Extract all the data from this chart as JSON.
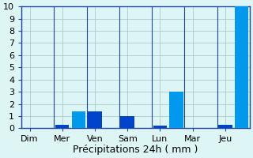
{
  "categories": [
    "Dim",
    "Mer",
    "Ven",
    "Sam",
    "Lun",
    "Mar",
    "Jeu"
  ],
  "bar_positions": [
    0,
    1,
    2,
    3,
    4,
    5,
    6,
    7,
    8,
    9,
    10,
    11,
    12,
    13
  ],
  "bar_values": [
    0.0,
    0.0,
    0.3,
    1.4,
    1.4,
    0.0,
    1.0,
    0.0,
    0.2,
    3.0,
    0.0,
    0.0,
    0.3,
    10.0
  ],
  "bar_colors": [
    "#1060d0",
    "#1090f0",
    "#1060d0",
    "#1090f0",
    "#1060d0",
    "#1090f0",
    "#1060d0",
    "#1090f0",
    "#1060d0",
    "#1090f0",
    "#1060d0",
    "#1090f0",
    "#1060d0",
    "#1090f0"
  ],
  "tick_positions": [
    0.5,
    2.5,
    4.5,
    6.5,
    8.5,
    10.5,
    12.5
  ],
  "tick_labels": [
    "Dim",
    "Mer",
    "Ven",
    "Sam",
    "Lun",
    "Mar",
    "Jeu"
  ],
  "vline_positions": [
    0,
    2,
    4,
    6,
    8,
    10,
    12,
    14
  ],
  "bar_width": 0.85,
  "background_color": "#ddf5f5",
  "grid_color": "#aacccc",
  "axis_color": "#2244aa",
  "bar_dark": "#0044cc",
  "bar_light": "#0099ee",
  "xlabel": "Précipitations 24h ( mm )",
  "ylim": [
    0,
    10
  ],
  "yticks": [
    0,
    1,
    2,
    3,
    4,
    5,
    6,
    7,
    8,
    9,
    10
  ],
  "xlabel_fontsize": 9,
  "tick_fontsize": 8
}
